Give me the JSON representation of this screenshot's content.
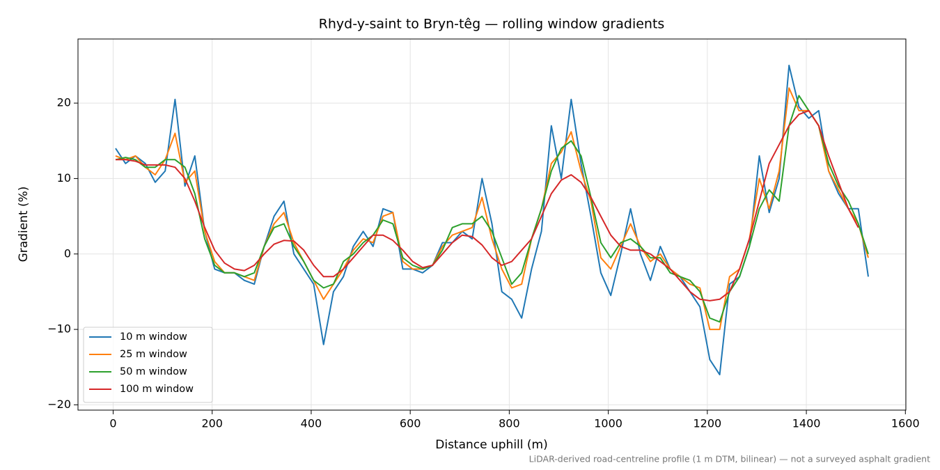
{
  "chart_data": {
    "type": "line",
    "title": "Rhyd-y-saint to Bryn-têg — rolling window gradients",
    "x_label": "Distance uphill (m)",
    "y_label": "Gradient (%)",
    "footnote": "LiDAR-derived road-centreline profile (1 m DTM, bilinear) — not a surveyed asphalt gradient",
    "xlim": [
      -71,
      1601
    ],
    "ylim": [
      -20.7,
      28.5
    ],
    "xticks": [
      0,
      200,
      400,
      600,
      800,
      1000,
      1200,
      1400,
      1600
    ],
    "yticks": [
      {
        "value": -20,
        "label": "−20"
      },
      {
        "value": -10,
        "label": "−10"
      },
      0,
      10,
      20
    ],
    "grid": true,
    "legend": "lower left",
    "x": [
      5,
      25,
      45,
      65,
      85,
      105,
      125,
      145,
      165,
      185,
      205,
      225,
      245,
      265,
      285,
      305,
      325,
      345,
      365,
      385,
      405,
      425,
      445,
      465,
      485,
      505,
      525,
      545,
      565,
      585,
      605,
      625,
      645,
      665,
      685,
      705,
      725,
      745,
      765,
      785,
      805,
      825,
      845,
      865,
      885,
      905,
      925,
      945,
      965,
      985,
      1005,
      1025,
      1045,
      1065,
      1085,
      1105,
      1125,
      1145,
      1165,
      1185,
      1205,
      1225,
      1245,
      1265,
      1285,
      1305,
      1325,
      1345,
      1365,
      1385,
      1405,
      1425,
      1445,
      1465,
      1485,
      1505,
      1525
    ],
    "series": [
      {
        "name": "10 m window",
        "color": "#1f77b4",
        "values": [
          14,
          12,
          13,
          12,
          9.5,
          11,
          20.5,
          9,
          13,
          3,
          -2,
          -2.5,
          -2.5,
          -3.5,
          -4,
          1,
          5,
          7,
          0,
          -2,
          -4,
          -12,
          -5,
          -3,
          1,
          3,
          1,
          6,
          5.5,
          -2,
          -2,
          -2.5,
          -1.5,
          1.5,
          1.5,
          3,
          2,
          10,
          4,
          -5,
          -6,
          -8.5,
          -2,
          3,
          17,
          10,
          20.5,
          12,
          5,
          -2.5,
          -5.5,
          0,
          6,
          0,
          -3.5,
          1,
          -2,
          -3,
          -5,
          -7,
          -14,
          -16,
          -4,
          -3,
          1,
          13,
          5.5,
          10,
          25,
          19.5,
          18,
          19,
          11,
          8,
          6,
          6,
          -3
        ]
      },
      {
        "name": "25 m window",
        "color": "#ff7f0e",
        "values": [
          13,
          12.5,
          13,
          11.5,
          10.5,
          12.5,
          16,
          9.5,
          11,
          3,
          -1,
          -2.5,
          -2.5,
          -3,
          -3.5,
          1,
          4,
          5.5,
          1.5,
          -1,
          -3.5,
          -6,
          -4,
          -2,
          0.5,
          2,
          1.5,
          5,
          5.5,
          -1,
          -2,
          -2,
          -1.5,
          1,
          2.5,
          3,
          3.5,
          7.5,
          2,
          -2,
          -4.5,
          -4,
          2,
          6,
          12,
          13.5,
          16.2,
          11,
          7,
          -0.5,
          -2,
          1,
          4,
          1,
          -1,
          0,
          -2,
          -3,
          -4,
          -4.5,
          -10,
          -10,
          -3,
          -2,
          2,
          10,
          6,
          11,
          22,
          19,
          19,
          17,
          11,
          8.5,
          6,
          4,
          -0.5
        ]
      },
      {
        "name": "50 m window",
        "color": "#2ca02c",
        "values": [
          12.5,
          12.8,
          12.5,
          11.5,
          11.5,
          12.5,
          12.5,
          11.5,
          8,
          2,
          -1.5,
          -2.5,
          -2.5,
          -3,
          -2.5,
          1,
          3.5,
          4,
          1,
          -1,
          -3.5,
          -4.5,
          -4,
          -1,
          0,
          1.5,
          2.5,
          4.5,
          4,
          -0.5,
          -1.5,
          -2,
          -1.5,
          0.5,
          3.5,
          4,
          4,
          5,
          3,
          -0.5,
          -4,
          -2.5,
          2,
          6,
          11,
          14,
          15,
          13,
          7.5,
          1.5,
          -0.5,
          1.5,
          2,
          1,
          -0.5,
          -0.5,
          -2.5,
          -3,
          -3.5,
          -5,
          -8.5,
          -9,
          -5,
          -3,
          1,
          6,
          8.5,
          7,
          17,
          21,
          19,
          17,
          12,
          9,
          7,
          4,
          0
        ]
      },
      {
        "name": "100 m window",
        "color": "#d62728",
        "values": [
          12.5,
          12.5,
          12.3,
          11.8,
          11.8,
          11.8,
          11.5,
          10,
          7,
          3.5,
          0.5,
          -1.2,
          -2,
          -2.2,
          -1.5,
          0,
          1.3,
          1.8,
          1.7,
          0.5,
          -1.5,
          -3,
          -3,
          -2,
          -0.5,
          1,
          2.5,
          2.5,
          1.8,
          0.5,
          -1,
          -1.8,
          -1.5,
          0,
          1.5,
          2.5,
          2.3,
          1.2,
          -0.5,
          -1.5,
          -1,
          0.5,
          2,
          5,
          8,
          9.8,
          10.5,
          9.5,
          7.5,
          5,
          2.5,
          1,
          0.5,
          0.5,
          0,
          -1,
          -2,
          -3.5,
          -5,
          -6,
          -6.2,
          -6,
          -5,
          -2,
          2,
          7,
          12,
          14.5,
          17,
          18.5,
          19,
          17,
          13,
          9.5,
          6,
          3.5,
          null
        ]
      }
    ]
  }
}
